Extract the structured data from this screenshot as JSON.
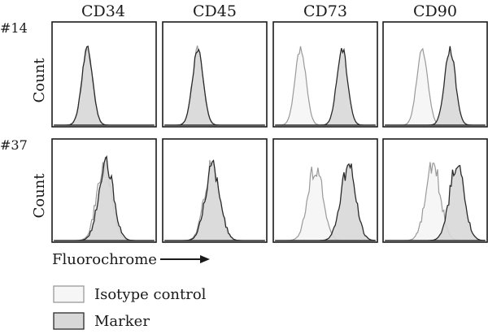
{
  "chart_data": {
    "type": "histogram-grid",
    "columns": [
      "CD34",
      "CD45",
      "CD73",
      "CD90"
    ],
    "rows": [
      "#14",
      "#37"
    ],
    "ylabel": "Count",
    "xlabel": "Fluorochrome",
    "legend": [
      {
        "label": "Isotype control",
        "color": "#f6f6f6",
        "stroke": "#9a9a9a"
      },
      {
        "label": "Marker",
        "color": "#d8d8d8",
        "stroke": "#2a2a2a"
      }
    ],
    "panels": [
      {
        "row": "#14",
        "marker": "CD34",
        "isotype_peak": 0.33,
        "marker_peak": 0.33,
        "peaks_overlap": true
      },
      {
        "row": "#14",
        "marker": "CD45",
        "isotype_peak": 0.33,
        "marker_peak": 0.33,
        "peaks_overlap": true
      },
      {
        "row": "#14",
        "marker": "CD73",
        "isotype_peak": 0.25,
        "marker_peak": 0.67,
        "peaks_overlap": false
      },
      {
        "row": "#14",
        "marker": "CD90",
        "isotype_peak": 0.37,
        "marker_peak": 0.65,
        "peaks_overlap": false
      },
      {
        "row": "#37",
        "marker": "CD34",
        "isotype_peak": 0.5,
        "marker_peak": 0.52,
        "peaks_overlap": true
      },
      {
        "row": "#37",
        "marker": "CD45",
        "isotype_peak": 0.47,
        "marker_peak": 0.48,
        "peaks_overlap": true
      },
      {
        "row": "#37",
        "marker": "CD73",
        "isotype_peak": 0.4,
        "marker_peak": 0.73,
        "peaks_overlap": false
      },
      {
        "row": "#37",
        "marker": "CD90",
        "isotype_peak": 0.48,
        "marker_peak": 0.72,
        "peaks_overlap": false
      }
    ]
  }
}
